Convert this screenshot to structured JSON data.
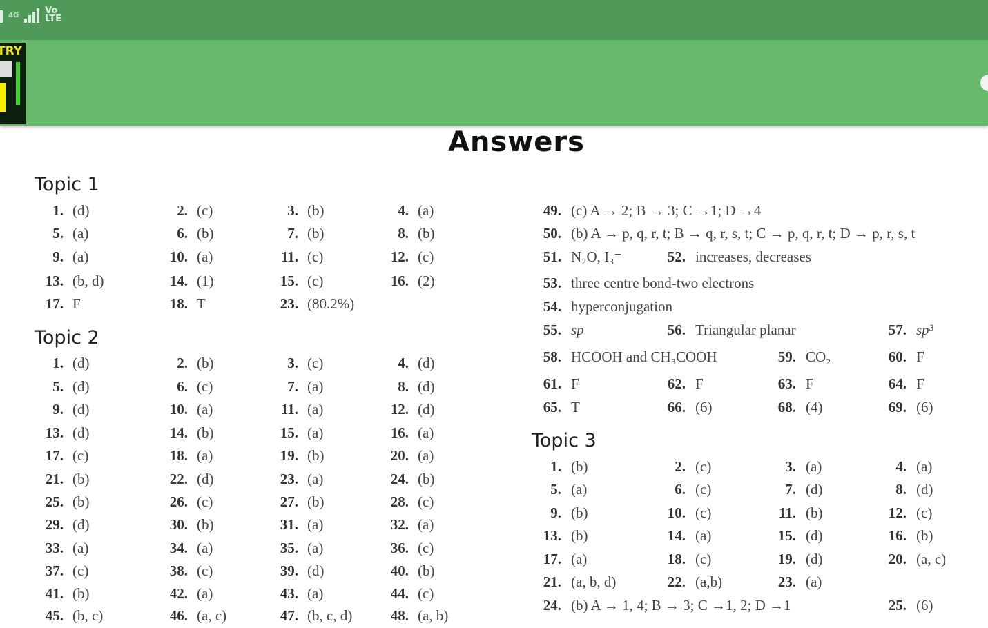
{
  "status_bar": {
    "network": "4G",
    "volte": "Vo LTE"
  },
  "document": {
    "title": "Answers",
    "left": [
      {
        "topic": "Topic 1",
        "rows": [
          [
            {
              "n": "1.",
              "a": "(d)"
            },
            {
              "n": "2.",
              "a": "(c)"
            },
            {
              "n": "3.",
              "a": "(b)"
            },
            {
              "n": "4.",
              "a": "(a)"
            }
          ],
          [
            {
              "n": "5.",
              "a": "(a)"
            },
            {
              "n": "6.",
              "a": "(b)"
            },
            {
              "n": "7.",
              "a": "(b)"
            },
            {
              "n": "8.",
              "a": "(b)"
            }
          ],
          [
            {
              "n": "9.",
              "a": "(a)"
            },
            {
              "n": "10.",
              "a": "(a)"
            },
            {
              "n": "11.",
              "a": "(c)"
            },
            {
              "n": "12.",
              "a": "(c)"
            }
          ],
          [
            {
              "n": "13.",
              "a": "(b, d)"
            },
            {
              "n": "14.",
              "a": "(1)"
            },
            {
              "n": "15.",
              "a": "(c)"
            },
            {
              "n": "16.",
              "a": "(2)"
            }
          ],
          [
            {
              "n": "17.",
              "a": "F"
            },
            {
              "n": "18.",
              "a": "T"
            },
            {
              "n": "23.",
              "a": "(80.2%)"
            },
            null
          ]
        ]
      },
      {
        "topic": "Topic 2",
        "rows": [
          [
            {
              "n": "1.",
              "a": "(d)"
            },
            {
              "n": "2.",
              "a": "(b)"
            },
            {
              "n": "3.",
              "a": "(c)"
            },
            {
              "n": "4.",
              "a": "(d)"
            }
          ],
          [
            {
              "n": "5.",
              "a": "(d)"
            },
            {
              "n": "6.",
              "a": "(c)"
            },
            {
              "n": "7.",
              "a": "(a)"
            },
            {
              "n": "8.",
              "a": "(d)"
            }
          ],
          [
            {
              "n": "9.",
              "a": "(d)"
            },
            {
              "n": "10.",
              "a": "(a)"
            },
            {
              "n": "11.",
              "a": "(a)"
            },
            {
              "n": "12.",
              "a": "(d)"
            }
          ],
          [
            {
              "n": "13.",
              "a": "(d)"
            },
            {
              "n": "14.",
              "a": "(b)"
            },
            {
              "n": "15.",
              "a": "(a)"
            },
            {
              "n": "16.",
              "a": "(a)"
            }
          ],
          [
            {
              "n": "17.",
              "a": "(c)"
            },
            {
              "n": "18.",
              "a": "(a)"
            },
            {
              "n": "19.",
              "a": "(b)"
            },
            {
              "n": "20.",
              "a": "(a)"
            }
          ],
          [
            {
              "n": "21.",
              "a": "(b)"
            },
            {
              "n": "22.",
              "a": "(d)"
            },
            {
              "n": "23.",
              "a": "(a)"
            },
            {
              "n": "24.",
              "a": "(b)"
            }
          ],
          [
            {
              "n": "25.",
              "a": "(b)"
            },
            {
              "n": "26.",
              "a": "(c)"
            },
            {
              "n": "27.",
              "a": "(b)"
            },
            {
              "n": "28.",
              "a": "(c)"
            }
          ],
          [
            {
              "n": "29.",
              "a": "(d)"
            },
            {
              "n": "30.",
              "a": "(b)"
            },
            {
              "n": "31.",
              "a": "(a)"
            },
            {
              "n": "32.",
              "a": "(a)"
            }
          ],
          [
            {
              "n": "33.",
              "a": "(a)"
            },
            {
              "n": "34.",
              "a": "(a)"
            },
            {
              "n": "35.",
              "a": "(a)"
            },
            {
              "n": "36.",
              "a": "(c)"
            }
          ],
          [
            {
              "n": "37.",
              "a": "(c)"
            },
            {
              "n": "38.",
              "a": "(c)"
            },
            {
              "n": "39.",
              "a": "(d)"
            },
            {
              "n": "40.",
              "a": "(b)"
            }
          ],
          [
            {
              "n": "41.",
              "a": "(b)"
            },
            {
              "n": "42.",
              "a": "(a)"
            },
            {
              "n": "43.",
              "a": "(a)"
            },
            {
              "n": "44.",
              "a": "(c)"
            }
          ],
          [
            {
              "n": "45.",
              "a": "(b, c)"
            },
            {
              "n": "46.",
              "a": "(a, c)"
            },
            {
              "n": "47.",
              "a": "(b, c, d)"
            },
            {
              "n": "48.",
              "a": "(a, b)"
            }
          ]
        ]
      }
    ],
    "right": [
      {
        "topic": "",
        "rows": [
          [
            {
              "n": "49.",
              "a": "(c) A → 2;  B → 3; C →1; D →4"
            },
            null,
            null,
            null
          ],
          [
            {
              "n": "50.",
              "a": "(b) A → p, q, r, t;  B → q, r, s, t;  C → p, q, r, t;  D → p, r, s, t"
            },
            null,
            null,
            null
          ],
          [
            {
              "n": "51.",
              "a": "N₂O, I₃⁻"
            },
            {
              "n": "52.",
              "a": "increases, decreases"
            },
            null,
            null
          ],
          [
            {
              "n": "53.",
              "a": "three centre bond-two electrons"
            },
            null,
            null,
            null
          ],
          [
            {
              "n": "54.",
              "a": "hyperconjugation"
            },
            null,
            null,
            null
          ],
          [
            {
              "n": "55.",
              "a": "sp"
            },
            {
              "n": "56.",
              "a": "Triangular planar"
            },
            null,
            {
              "n": "57.",
              "a": "sp³"
            }
          ],
          [
            {
              "n": "58.",
              "a": "HCOOH and CH₃COOH"
            },
            null,
            {
              "n": "59.",
              "a": "CO₂"
            },
            {
              "n": "60.",
              "a": "F"
            }
          ],
          [
            {
              "n": "61.",
              "a": "F"
            },
            {
              "n": "62.",
              "a": "F"
            },
            {
              "n": "63.",
              "a": "F"
            },
            {
              "n": "64.",
              "a": "F"
            }
          ],
          [
            {
              "n": "65.",
              "a": "T"
            },
            {
              "n": "66.",
              "a": "(6)"
            },
            {
              "n": "68.",
              "a": "(4)"
            },
            {
              "n": "69.",
              "a": "(6)"
            }
          ]
        ]
      },
      {
        "topic": "Topic 3",
        "rows": [
          [
            {
              "n": "1.",
              "a": "(b)"
            },
            {
              "n": "2.",
              "a": "(c)"
            },
            {
              "n": "3.",
              "a": "(a)"
            },
            {
              "n": "4.",
              "a": "(a)"
            }
          ],
          [
            {
              "n": "5.",
              "a": "(a)"
            },
            {
              "n": "6.",
              "a": "(c)"
            },
            {
              "n": "7.",
              "a": "(d)"
            },
            {
              "n": "8.",
              "a": "(d)"
            }
          ],
          [
            {
              "n": "9.",
              "a": "(b)"
            },
            {
              "n": "10.",
              "a": "(c)"
            },
            {
              "n": "11.",
              "a": "(b)"
            },
            {
              "n": "12.",
              "a": "(c)"
            }
          ],
          [
            {
              "n": "13.",
              "a": "(b)"
            },
            {
              "n": "14.",
              "a": "(a)"
            },
            {
              "n": "15.",
              "a": "(d)"
            },
            {
              "n": "16.",
              "a": "(b)"
            }
          ],
          [
            {
              "n": "17.",
              "a": "(a)"
            },
            {
              "n": "18.",
              "a": "(c)"
            },
            {
              "n": "19.",
              "a": "(d)"
            },
            {
              "n": "20.",
              "a": "(a, c)"
            }
          ],
          [
            {
              "n": "21.",
              "a": "(a, b, d)"
            },
            {
              "n": "22.",
              "a": "(a,b)"
            },
            {
              "n": "23.",
              "a": "(a)"
            },
            null
          ],
          [
            {
              "n": "24.",
              "a": "(b) A → 1, 4;  B → 3;  C →1, 2; D →1"
            },
            null,
            null,
            {
              "n": "25.",
              "a": "(6)"
            }
          ]
        ]
      }
    ]
  }
}
